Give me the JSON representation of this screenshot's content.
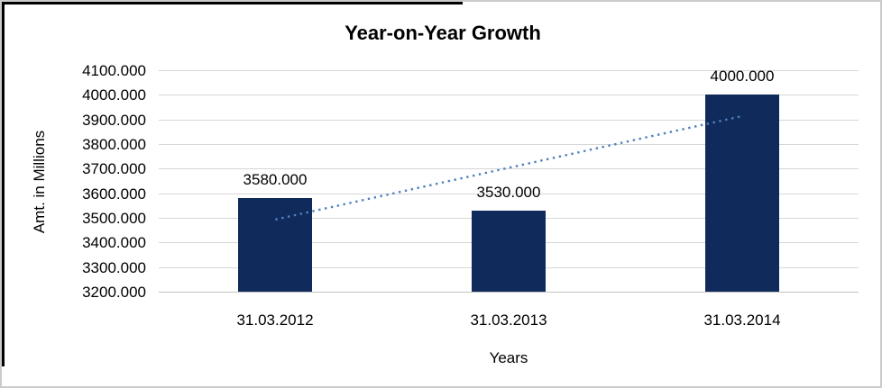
{
  "chart_data": {
    "type": "bar",
    "title": "Year-on-Year Growth",
    "xlabel": "Years",
    "ylabel": "Amt. in Millions",
    "categories": [
      "31.03.2012",
      "31.03.2013",
      "31.03.2014"
    ],
    "values": [
      3580,
      3530,
      4000
    ],
    "data_labels": [
      "3580.000",
      "3530.000",
      "4000.000"
    ],
    "ylim": [
      3200,
      4100
    ],
    "ytick_step": 100,
    "ytick_values": [
      4100,
      4000,
      3900,
      3800,
      3700,
      3600,
      3500,
      3400,
      3300,
      3200
    ],
    "ytick_labels": [
      "4100.000",
      "4000.000",
      "3900.000",
      "3800.000",
      "3700.000",
      "3600.000",
      "3500.000",
      "3400.000",
      "3300.000",
      "3200.000"
    ],
    "grid": true,
    "legend_position": "none",
    "bar_color": "#102A5C",
    "gridline_color": "#D6D6D6",
    "trendline": {
      "type": "linear",
      "style": "dotted",
      "color": "#4F81BD",
      "start_value": 3493.3,
      "end_value": 3913.3
    }
  }
}
